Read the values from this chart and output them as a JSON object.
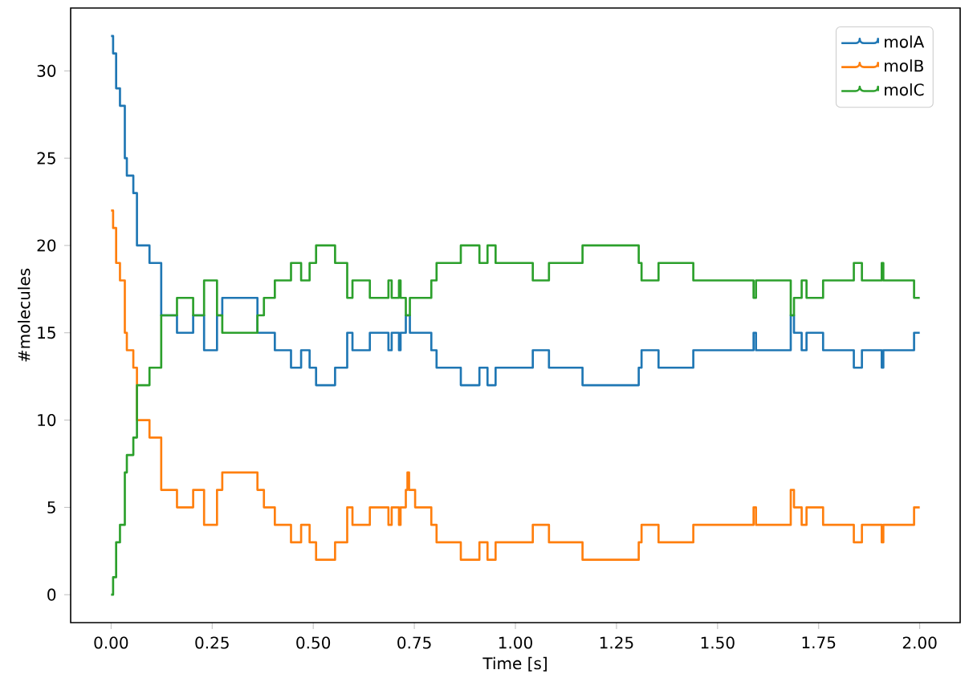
{
  "chart_data": {
    "type": "step",
    "xlabel": "Time [s]",
    "ylabel": "#molecules",
    "x": [
      0,
      0.005,
      0.0125,
      0.022,
      0.034,
      0.039,
      0.055,
      0.064,
      0.095,
      0.124,
      0.163,
      0.203,
      0.23,
      0.262,
      0.275,
      0.362,
      0.378,
      0.405,
      0.445,
      0.47,
      0.491,
      0.507,
      0.554,
      0.584,
      0.597,
      0.64,
      0.686,
      0.694,
      0.712,
      0.716,
      0.729,
      0.733,
      0.737,
      0.739,
      0.752,
      0.792,
      0.805,
      0.865,
      0.911,
      0.931,
      0.951,
      1.043,
      1.083,
      1.166,
      1.305,
      1.312,
      1.354,
      1.44,
      1.589,
      1.595,
      1.681,
      1.689,
      1.708,
      1.72,
      1.761,
      1.837,
      1.857,
      1.906,
      1.91,
      1.986,
      2.0
    ],
    "series": [
      {
        "name": "molA",
        "color": "#1f77b4",
        "values": [
          32,
          31,
          29,
          28,
          25,
          24,
          23,
          20,
          19,
          16,
          15,
          16,
          14,
          16,
          17,
          15,
          15,
          14,
          13,
          14,
          13,
          12,
          13,
          15,
          14,
          15,
          14,
          15,
          14,
          15,
          16,
          16,
          16,
          15,
          15,
          14,
          13,
          12,
          13,
          12,
          13,
          14,
          13,
          12,
          13,
          14,
          13,
          14,
          15,
          14,
          16,
          15,
          14,
          15,
          14,
          13,
          14,
          13,
          14,
          15,
          15
        ]
      },
      {
        "name": "molB",
        "color": "#ff7f0e",
        "values": [
          22,
          21,
          19,
          18,
          15,
          14,
          13,
          10,
          9,
          6,
          5,
          6,
          4,
          6,
          7,
          6,
          5,
          4,
          3,
          4,
          3,
          2,
          3,
          5,
          4,
          5,
          4,
          5,
          4,
          5,
          6,
          7,
          6,
          6,
          5,
          4,
          3,
          2,
          3,
          2,
          3,
          4,
          3,
          2,
          3,
          4,
          3,
          4,
          5,
          4,
          6,
          5,
          4,
          5,
          4,
          3,
          4,
          3,
          4,
          5,
          5
        ]
      },
      {
        "name": "molC",
        "color": "#2ca02c",
        "values": [
          0,
          1,
          3,
          4,
          7,
          8,
          9,
          12,
          13,
          16,
          17,
          16,
          18,
          16,
          15,
          16,
          17,
          18,
          19,
          18,
          19,
          20,
          19,
          17,
          18,
          17,
          18,
          17,
          18,
          17,
          16,
          16,
          16,
          17,
          17,
          18,
          19,
          20,
          19,
          20,
          19,
          18,
          19,
          20,
          19,
          18,
          19,
          18,
          17,
          18,
          16,
          17,
          18,
          17,
          18,
          19,
          18,
          19,
          18,
          17,
          17
        ]
      }
    ],
    "xlim": [
      -0.1,
      2.1
    ],
    "ylim": [
      -1.6,
      33.6
    ],
    "xticks": [
      {
        "value": 0,
        "label": "0.00"
      },
      {
        "value": 0.25,
        "label": "0.25"
      },
      {
        "value": 0.5,
        "label": "0.50"
      },
      {
        "value": 0.75,
        "label": "0.75"
      },
      {
        "value": 1,
        "label": "1.00"
      },
      {
        "value": 1.25,
        "label": "1.25"
      },
      {
        "value": 1.5,
        "label": "1.50"
      },
      {
        "value": 1.75,
        "label": "1.75"
      },
      {
        "value": 2,
        "label": "2.00"
      }
    ],
    "yticks": [
      0,
      5,
      10,
      15,
      20,
      25,
      30
    ],
    "legend": "top right",
    "grid": false
  }
}
